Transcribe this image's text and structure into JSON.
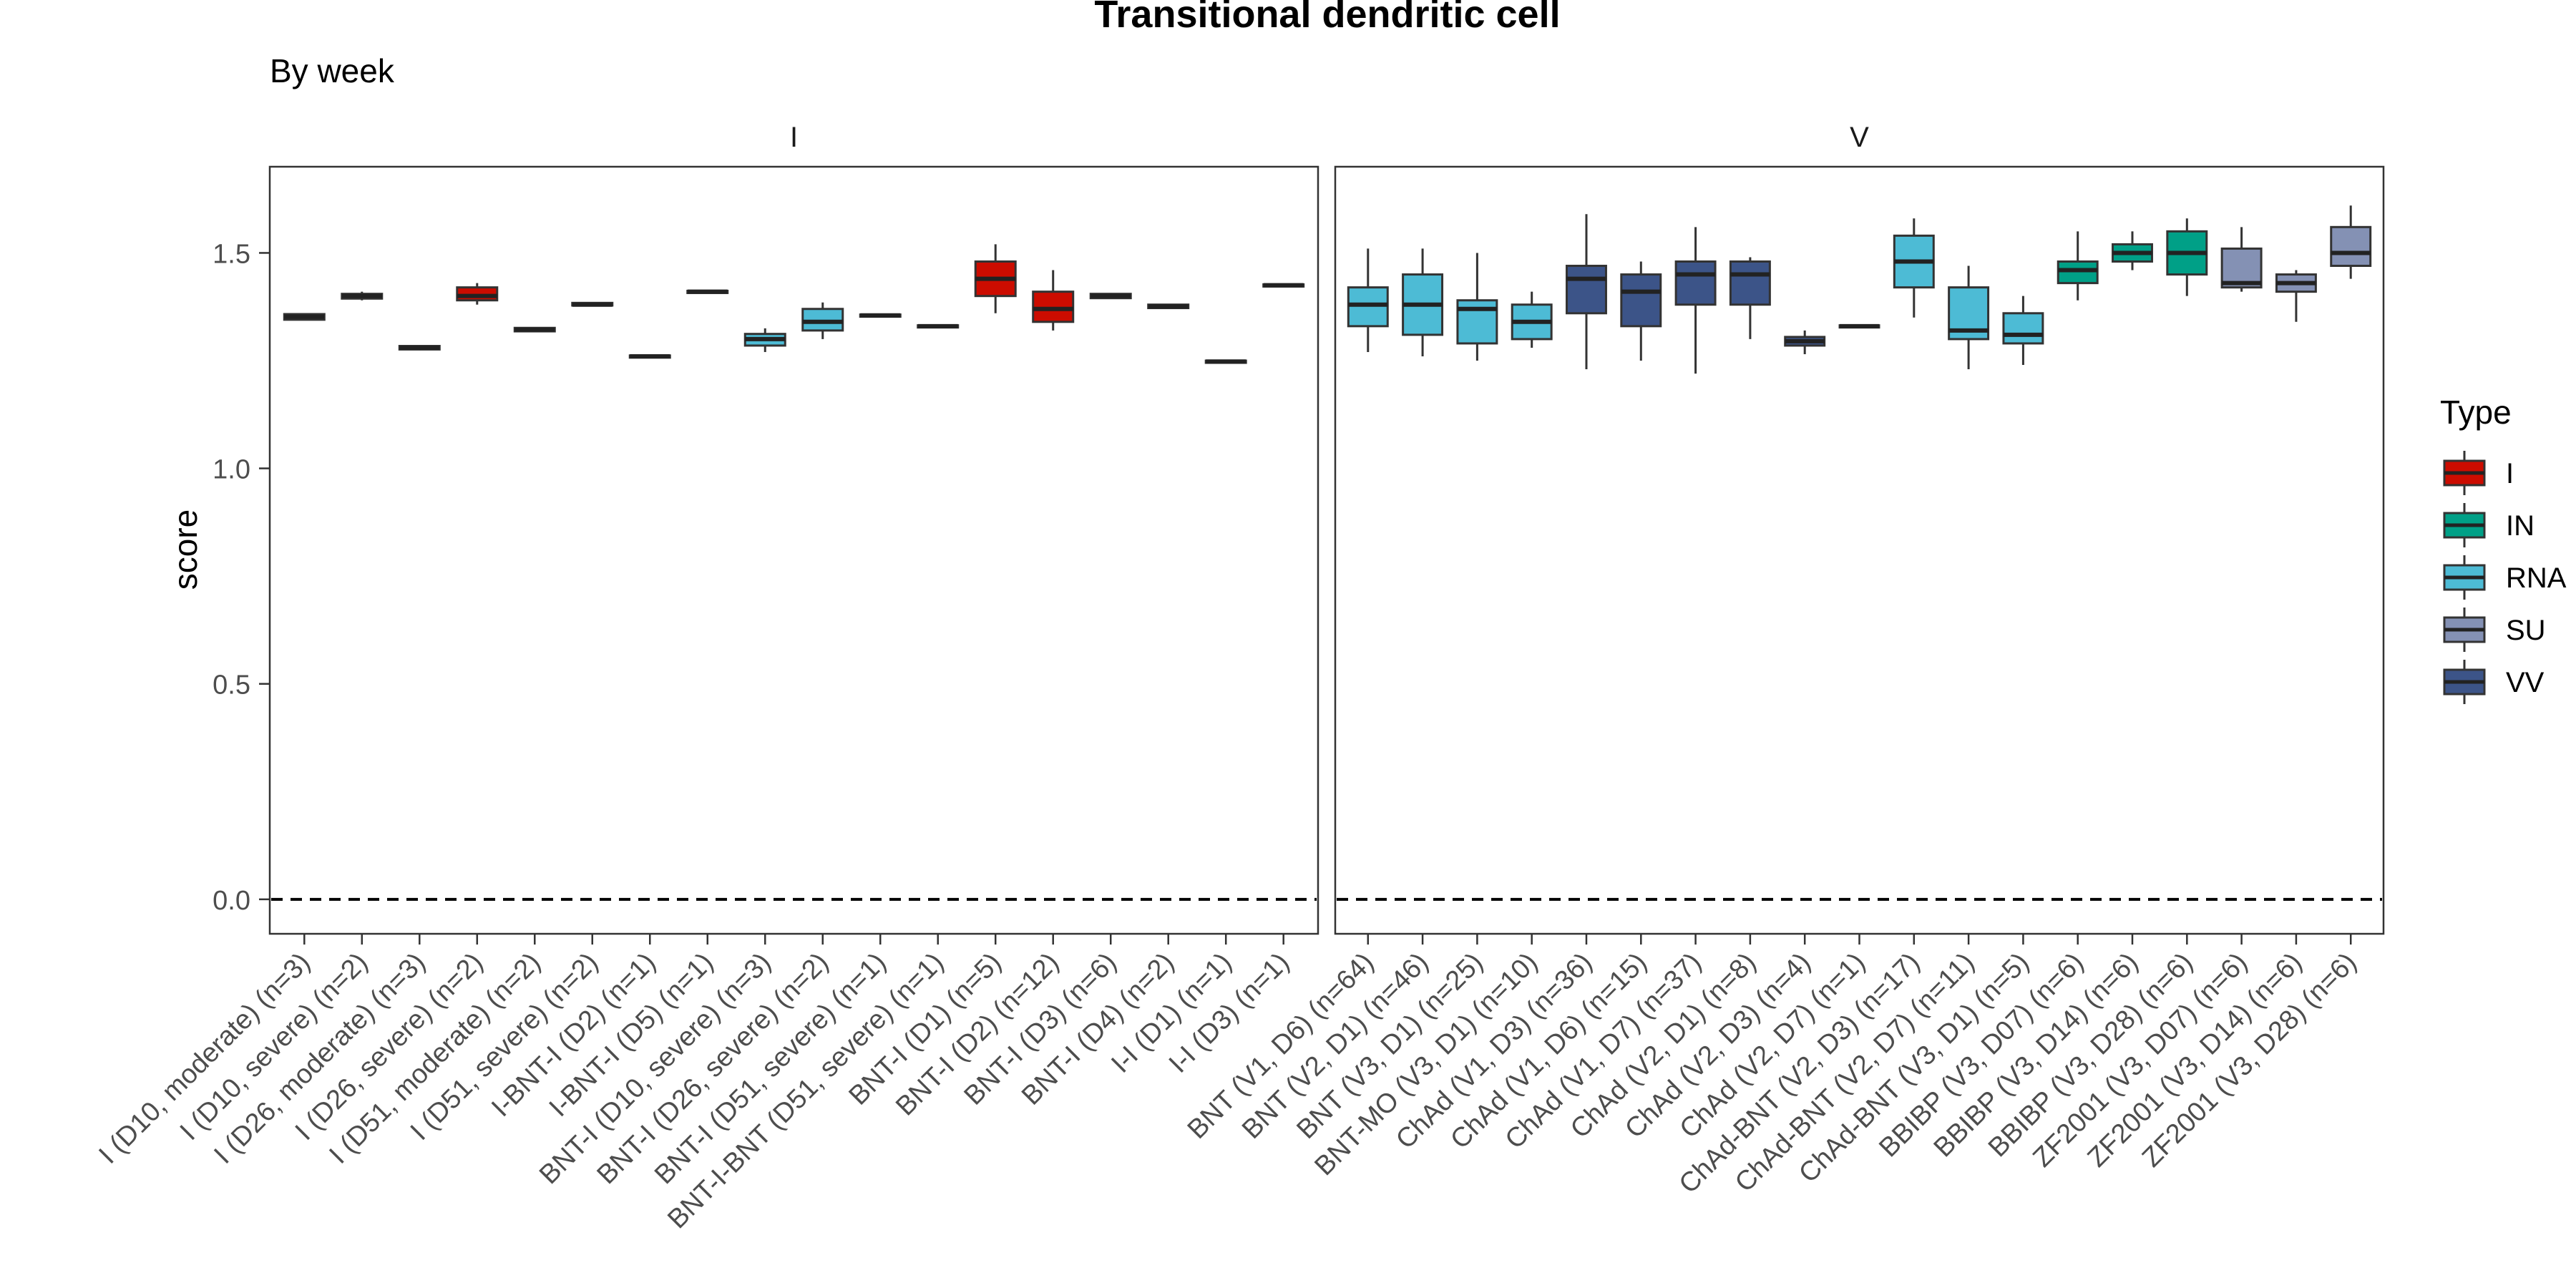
{
  "chart_data": {
    "type": "boxplot",
    "title": "Transitional dendritic cell",
    "subtitle": "By week",
    "ylabel": "score",
    "xlabel": "",
    "ylim": [
      -0.08,
      1.7
    ],
    "yticks": [
      0.0,
      0.5,
      1.0,
      1.5
    ],
    "ytick_labels": [
      "0.0",
      "0.5",
      "1.0",
      "1.5"
    ],
    "reference_line": 0.0,
    "legend": {
      "title": "Type",
      "position": "right",
      "entries": [
        {
          "label": "I",
          "color": "#CC0C00"
        },
        {
          "label": "IN",
          "color": "#00A087"
        },
        {
          "label": "RNA",
          "color": "#4DBBD5"
        },
        {
          "label": "SU",
          "color": "#8491B4"
        },
        {
          "label": "VV",
          "color": "#3C5488"
        }
      ]
    },
    "panels": [
      {
        "strip": "I",
        "boxes": [
          {
            "label": "I (D10, moderate) (n=3)",
            "type": "I",
            "q1": 1.345,
            "median": 1.352,
            "q3": 1.358,
            "lo": 1.345,
            "hi": 1.36
          },
          {
            "label": "I (D10, severe) (n=2)",
            "type": "I",
            "q1": 1.394,
            "median": 1.4,
            "q3": 1.405,
            "lo": 1.39,
            "hi": 1.41
          },
          {
            "label": "I (D26, moderate) (n=3)",
            "type": "I",
            "q1": 1.276,
            "median": 1.28,
            "q3": 1.284,
            "lo": 1.274,
            "hi": 1.286
          },
          {
            "label": "I (D26, severe) (n=2)",
            "type": "I",
            "q1": 1.39,
            "median": 1.4,
            "q3": 1.42,
            "lo": 1.38,
            "hi": 1.43
          },
          {
            "label": "I (D51, moderate) (n=2)",
            "type": "I",
            "q1": 1.318,
            "median": 1.322,
            "q3": 1.326,
            "lo": 1.316,
            "hi": 1.328
          },
          {
            "label": "I (D51, severe) (n=2)",
            "type": "I",
            "q1": 1.378,
            "median": 1.38,
            "q3": 1.384,
            "lo": 1.376,
            "hi": 1.386
          },
          {
            "label": "I-BNT-I (D2) (n=1)",
            "type": "I",
            "q1": 1.258,
            "median": 1.26,
            "q3": 1.262,
            "lo": 1.258,
            "hi": 1.262
          },
          {
            "label": "I-BNT-I (D5) (n=1)",
            "type": "I",
            "q1": 1.408,
            "median": 1.41,
            "q3": 1.412,
            "lo": 1.408,
            "hi": 1.412
          },
          {
            "label": "BNT-I (D10, severe) (n=3)",
            "type": "RNA",
            "q1": 1.285,
            "median": 1.3,
            "q3": 1.312,
            "lo": 1.27,
            "hi": 1.325
          },
          {
            "label": "BNT-I (D26, severe) (n=2)",
            "type": "RNA",
            "q1": 1.32,
            "median": 1.34,
            "q3": 1.37,
            "lo": 1.3,
            "hi": 1.385
          },
          {
            "label": "BNT-I (D51, severe) (n=1)",
            "type": "I",
            "q1": 1.353,
            "median": 1.355,
            "q3": 1.357,
            "lo": 1.353,
            "hi": 1.357
          },
          {
            "label": "BNT-I-BNT (D51, severe) (n=1)",
            "type": "I",
            "q1": 1.328,
            "median": 1.33,
            "q3": 1.332,
            "lo": 1.328,
            "hi": 1.332
          },
          {
            "label": "BNT-I (D1) (n=5)",
            "type": "I",
            "q1": 1.4,
            "median": 1.44,
            "q3": 1.48,
            "lo": 1.36,
            "hi": 1.52
          },
          {
            "label": "BNT-I (D2) (n=12)",
            "type": "I",
            "q1": 1.34,
            "median": 1.37,
            "q3": 1.41,
            "lo": 1.32,
            "hi": 1.46
          },
          {
            "label": "BNT-I (D3) (n=6)",
            "type": "I",
            "q1": 1.395,
            "median": 1.4,
            "q3": 1.405,
            "lo": 1.393,
            "hi": 1.407
          },
          {
            "label": "BNT-I (D4) (n=2)",
            "type": "I",
            "q1": 1.372,
            "median": 1.376,
            "q3": 1.38,
            "lo": 1.37,
            "hi": 1.382
          },
          {
            "label": "I-I (D1) (n=1)",
            "type": "I",
            "q1": 1.246,
            "median": 1.248,
            "q3": 1.25,
            "lo": 1.246,
            "hi": 1.25
          },
          {
            "label": "I-I (D3) (n=1)",
            "type": "I",
            "q1": 1.423,
            "median": 1.425,
            "q3": 1.427,
            "lo": 1.423,
            "hi": 1.427
          }
        ]
      },
      {
        "strip": "V",
        "boxes": [
          {
            "label": "BNT (V1, D6) (n=64)",
            "type": "RNA",
            "q1": 1.33,
            "median": 1.38,
            "q3": 1.42,
            "lo": 1.27,
            "hi": 1.51
          },
          {
            "label": "BNT (V2, D1) (n=46)",
            "type": "RNA",
            "q1": 1.31,
            "median": 1.38,
            "q3": 1.45,
            "lo": 1.26,
            "hi": 1.51
          },
          {
            "label": "BNT (V3, D1) (n=25)",
            "type": "RNA",
            "q1": 1.29,
            "median": 1.37,
            "q3": 1.39,
            "lo": 1.25,
            "hi": 1.5
          },
          {
            "label": "BNT-MO (V3, D1) (n=10)",
            "type": "RNA",
            "q1": 1.3,
            "median": 1.34,
            "q3": 1.38,
            "lo": 1.28,
            "hi": 1.41
          },
          {
            "label": "ChAd (V1, D3) (n=36)",
            "type": "VV",
            "q1": 1.36,
            "median": 1.44,
            "q3": 1.47,
            "lo": 1.23,
            "hi": 1.59
          },
          {
            "label": "ChAd (V1, D6) (n=15)",
            "type": "VV",
            "q1": 1.33,
            "median": 1.41,
            "q3": 1.45,
            "lo": 1.25,
            "hi": 1.48
          },
          {
            "label": "ChAd (V1, D7) (n=37)",
            "type": "VV",
            "q1": 1.38,
            "median": 1.45,
            "q3": 1.48,
            "lo": 1.22,
            "hi": 1.56
          },
          {
            "label": "ChAd (V2, D1) (n=8)",
            "type": "VV",
            "q1": 1.38,
            "median": 1.45,
            "q3": 1.48,
            "lo": 1.3,
            "hi": 1.49
          },
          {
            "label": "ChAd (V2, D3) (n=4)",
            "type": "VV",
            "q1": 1.285,
            "median": 1.295,
            "q3": 1.305,
            "lo": 1.265,
            "hi": 1.32
          },
          {
            "label": "ChAd (V2, D7) (n=1)",
            "type": "VV",
            "q1": 1.328,
            "median": 1.33,
            "q3": 1.332,
            "lo": 1.328,
            "hi": 1.332
          },
          {
            "label": "ChAd-BNT (V2, D3) (n=17)",
            "type": "RNA",
            "q1": 1.42,
            "median": 1.48,
            "q3": 1.54,
            "lo": 1.35,
            "hi": 1.58
          },
          {
            "label": "ChAd-BNT (V2, D7) (n=11)",
            "type": "RNA",
            "q1": 1.3,
            "median": 1.32,
            "q3": 1.42,
            "lo": 1.23,
            "hi": 1.47
          },
          {
            "label": "ChAd-BNT (V3, D1) (n=5)",
            "type": "RNA",
            "q1": 1.29,
            "median": 1.31,
            "q3": 1.36,
            "lo": 1.24,
            "hi": 1.4
          },
          {
            "label": "BBIBP (V3, D07) (n=6)",
            "type": "IN",
            "q1": 1.43,
            "median": 1.46,
            "q3": 1.48,
            "lo": 1.39,
            "hi": 1.55
          },
          {
            "label": "BBIBP (V3, D14) (n=6)",
            "type": "IN",
            "q1": 1.48,
            "median": 1.5,
            "q3": 1.52,
            "lo": 1.46,
            "hi": 1.55
          },
          {
            "label": "BBIBP (V3, D28) (n=6)",
            "type": "IN",
            "q1": 1.45,
            "median": 1.5,
            "q3": 1.55,
            "lo": 1.4,
            "hi": 1.58
          },
          {
            "label": "ZF2001 (V3, D07) (n=6)",
            "type": "SU",
            "q1": 1.42,
            "median": 1.43,
            "q3": 1.51,
            "lo": 1.41,
            "hi": 1.56
          },
          {
            "label": "ZF2001 (V3, D14) (n=6)",
            "type": "SU",
            "q1": 1.41,
            "median": 1.43,
            "q3": 1.45,
            "lo": 1.34,
            "hi": 1.46
          },
          {
            "label": "ZF2001 (V3, D28) (n=6)",
            "type": "SU",
            "q1": 1.47,
            "median": 1.5,
            "q3": 1.56,
            "lo": 1.44,
            "hi": 1.61
          }
        ]
      }
    ]
  }
}
